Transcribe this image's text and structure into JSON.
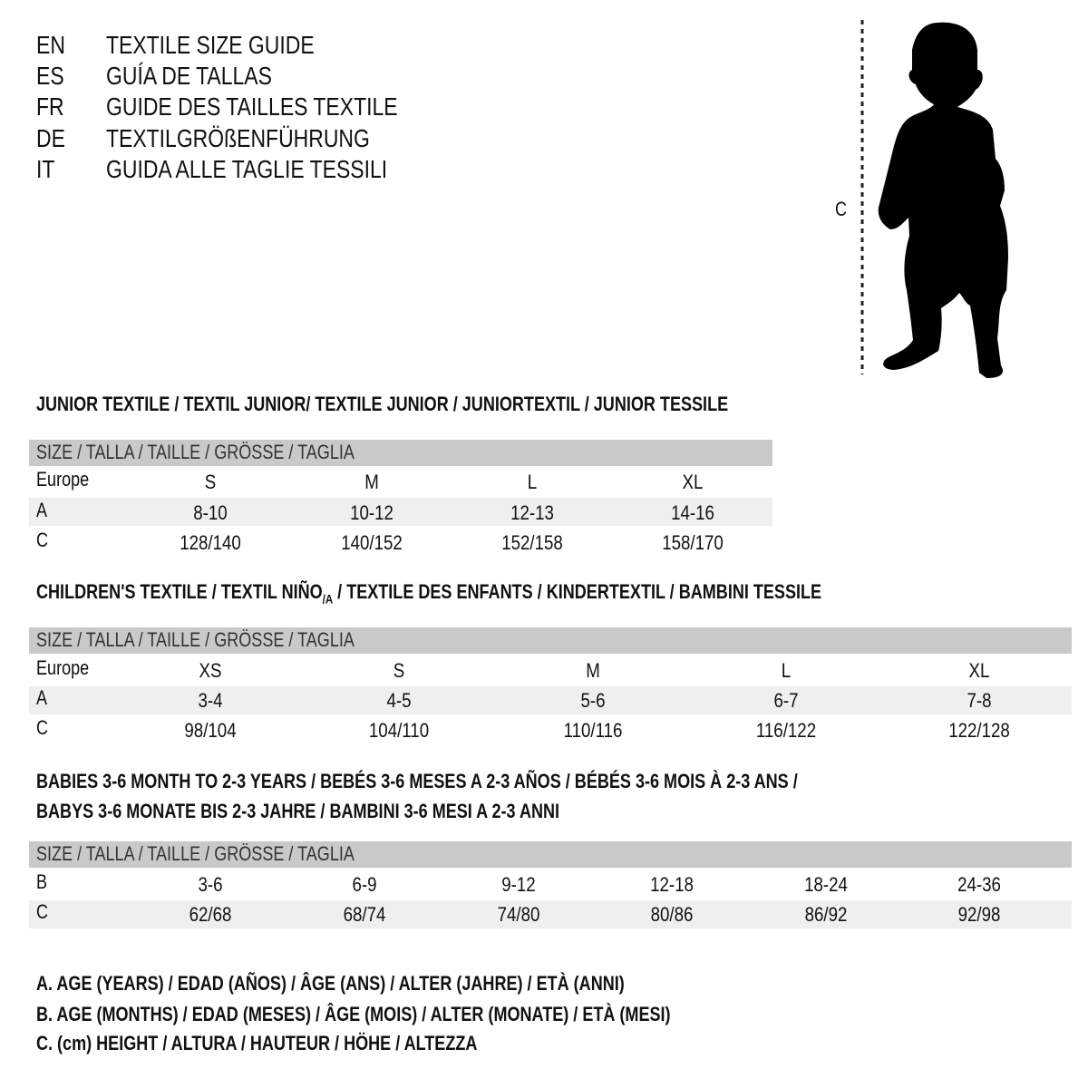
{
  "header": {
    "languages": [
      {
        "code": "EN",
        "title": "TEXTILE SIZE GUIDE"
      },
      {
        "code": "ES",
        "title": "GUÍA DE TALLAS"
      },
      {
        "code": "FR",
        "title": "GUIDE DES TAILLES TEXTILE"
      },
      {
        "code": "DE",
        "title": "TEXTILGRÖßENFÜHRUNG"
      },
      {
        "code": "IT",
        "title": "GUIDA ALLE TAGLIE TESSILI"
      }
    ]
  },
  "figure": {
    "measure_label": "C",
    "icon": "child-silhouette-icon"
  },
  "size_header": "SIZE / TALLA / TAILLE / GRÖSSE / TAGLIA",
  "junior": {
    "title": "JUNIOR TEXTILE / TEXTIL JUNIOR/ TEXTILE JUNIOR / JUNIORTEXTIL / JUNIOR TESSILE",
    "rows": [
      {
        "label": "Europe",
        "values": [
          "S",
          "M",
          "L",
          "XL"
        ]
      },
      {
        "label": "A",
        "values": [
          "8-10",
          "10-12",
          "12-13",
          "14-16"
        ]
      },
      {
        "label": "C",
        "values": [
          "128/140",
          "140/152",
          "152/158",
          "158/170"
        ]
      }
    ]
  },
  "children": {
    "title_pre": "CHILDREN'S TEXTILE / TEXTIL NIÑO",
    "title_sub": "/A",
    "title_post": " / TEXTILE DES ENFANTS / KINDERTEXTIL / BAMBINI TESSILE",
    "rows": [
      {
        "label": "Europe",
        "values": [
          "XS",
          "S",
          "M",
          "L",
          "XL"
        ]
      },
      {
        "label": "A",
        "values": [
          "3-4",
          "4-5",
          "5-6",
          "6-7",
          "7-8"
        ]
      },
      {
        "label": "C",
        "values": [
          "98/104",
          "104/110",
          "110/116",
          "116/122",
          "122/128"
        ]
      }
    ]
  },
  "babies": {
    "title_line1": "BABIES 3-6 MONTH TO 2-3 YEARS / BEBÉS 3-6 MESES A 2-3 AÑOS / BÉBÉS 3-6 MOIS À 2-3 ANS /",
    "title_line2": "BABYS 3-6 MONATE BIS 2-3 JAHRE / BAMBINI 3-6 MESI A 2-3 ANNI",
    "rows": [
      {
        "label": "B",
        "values": [
          "3-6",
          "6-9",
          "9-12",
          "12-18",
          "18-24",
          "24-36"
        ]
      },
      {
        "label": "C",
        "values": [
          "62/68",
          "68/74",
          "74/80",
          "80/86",
          "86/92",
          "92/98"
        ]
      }
    ]
  },
  "legend": [
    "A. AGE (YEARS) / EDAD (AÑOS) / ÂGE (ANS) / ALTER (JAHRE) / ETÀ (ANNI)",
    "B. AGE (MONTHS) / EDAD (MESES) / ÂGE (MOIS) / ALTER (MONATE) / ETÀ (MESI)",
    "C. (cm) HEIGHT / ALTURA / HAUTEUR / HÖHE / ALTEZZA"
  ],
  "colors": {
    "header_bar": "#c9c9c9",
    "shaded_row": "#efefef"
  }
}
